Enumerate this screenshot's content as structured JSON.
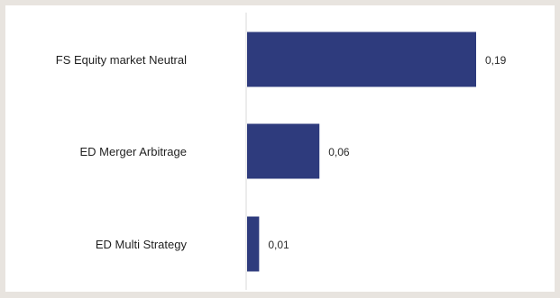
{
  "chart_data": {
    "type": "bar",
    "orientation": "horizontal",
    "categories": [
      "FS Equity market Neutral",
      "ED Merger Arbitrage",
      "ED Multi Strategy"
    ],
    "values": [
      0.19,
      0.06,
      0.01
    ],
    "value_labels": [
      "0,19",
      "0,06",
      "0,01"
    ],
    "title": "",
    "xlabel": "",
    "ylabel": "",
    "xlim": [
      0,
      0.19
    ],
    "grid": false,
    "legend": "none",
    "bar_color": "#2e3b7d",
    "axis_color": "#d9d9d9"
  }
}
